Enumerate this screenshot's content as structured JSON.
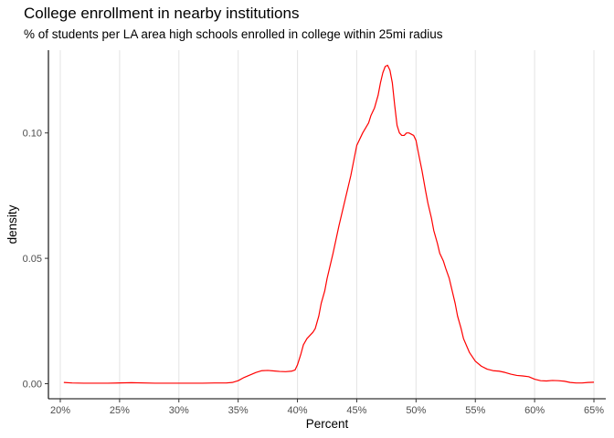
{
  "chart_data": {
    "type": "line",
    "title": "College enrollment in nearby institutions",
    "subtitle": "% of students per LA area high schools  enrolled in college within 25mi radius",
    "xlabel": "Percent",
    "ylabel": "density",
    "xlim": [
      0.19,
      0.66
    ],
    "ylim": [
      -0.006,
      0.133
    ],
    "x_ticks": [
      0.2,
      0.25,
      0.3,
      0.35,
      0.4,
      0.45,
      0.5,
      0.55,
      0.6,
      0.65
    ],
    "x_tick_labels": [
      "20%",
      "25%",
      "30%",
      "35%",
      "40%",
      "45%",
      "50%",
      "55%",
      "60%",
      "65%"
    ],
    "y_ticks": [
      0.0,
      0.05,
      0.1
    ],
    "y_tick_labels": [
      "0.00",
      "0.05",
      "0.10"
    ],
    "grid": "vertical-major",
    "series": [
      {
        "color": "#ff0000",
        "x": [
          0.203,
          0.21,
          0.22,
          0.24,
          0.26,
          0.28,
          0.3,
          0.32,
          0.33,
          0.34,
          0.345,
          0.35,
          0.355,
          0.36,
          0.365,
          0.37,
          0.375,
          0.38,
          0.385,
          0.39,
          0.395,
          0.398,
          0.4,
          0.403,
          0.405,
          0.408,
          0.41,
          0.413,
          0.415,
          0.418,
          0.42,
          0.423,
          0.425,
          0.43,
          0.435,
          0.44,
          0.445,
          0.45,
          0.455,
          0.46,
          0.462,
          0.465,
          0.468,
          0.47,
          0.472,
          0.474,
          0.476,
          0.478,
          0.48,
          0.482,
          0.484,
          0.486,
          0.488,
          0.49,
          0.492,
          0.494,
          0.496,
          0.498,
          0.5,
          0.502,
          0.505,
          0.508,
          0.51,
          0.513,
          0.515,
          0.518,
          0.52,
          0.523,
          0.525,
          0.528,
          0.53,
          0.533,
          0.535,
          0.538,
          0.54,
          0.545,
          0.55,
          0.555,
          0.56,
          0.565,
          0.57,
          0.575,
          0.58,
          0.585,
          0.59,
          0.595,
          0.6,
          0.605,
          0.61,
          0.615,
          0.62,
          0.625,
          0.63,
          0.635,
          0.64,
          0.645,
          0.65
        ],
        "values": [
          0.0005,
          0.0003,
          0.0002,
          0.0002,
          0.0004,
          0.0002,
          0.0002,
          0.0002,
          0.0003,
          0.0003,
          0.0005,
          0.0012,
          0.0025,
          0.0035,
          0.0045,
          0.0052,
          0.0053,
          0.0051,
          0.0049,
          0.0048,
          0.005,
          0.0055,
          0.0075,
          0.012,
          0.0155,
          0.018,
          0.019,
          0.0205,
          0.022,
          0.027,
          0.032,
          0.037,
          0.042,
          0.052,
          0.063,
          0.073,
          0.083,
          0.095,
          0.1,
          0.104,
          0.107,
          0.11,
          0.115,
          0.12,
          0.124,
          0.1265,
          0.127,
          0.125,
          0.12,
          0.111,
          0.103,
          0.1,
          0.099,
          0.099,
          0.1,
          0.1,
          0.0995,
          0.099,
          0.097,
          0.092,
          0.085,
          0.077,
          0.072,
          0.066,
          0.061,
          0.056,
          0.052,
          0.049,
          0.046,
          0.042,
          0.038,
          0.032,
          0.027,
          0.022,
          0.018,
          0.0125,
          0.009,
          0.007,
          0.0058,
          0.0052,
          0.005,
          0.0045,
          0.0038,
          0.0033,
          0.0031,
          0.0028,
          0.0018,
          0.0012,
          0.0011,
          0.0013,
          0.0012,
          0.001,
          0.0005,
          0.0003,
          0.0003,
          0.0005,
          0.0006
        ]
      }
    ]
  }
}
